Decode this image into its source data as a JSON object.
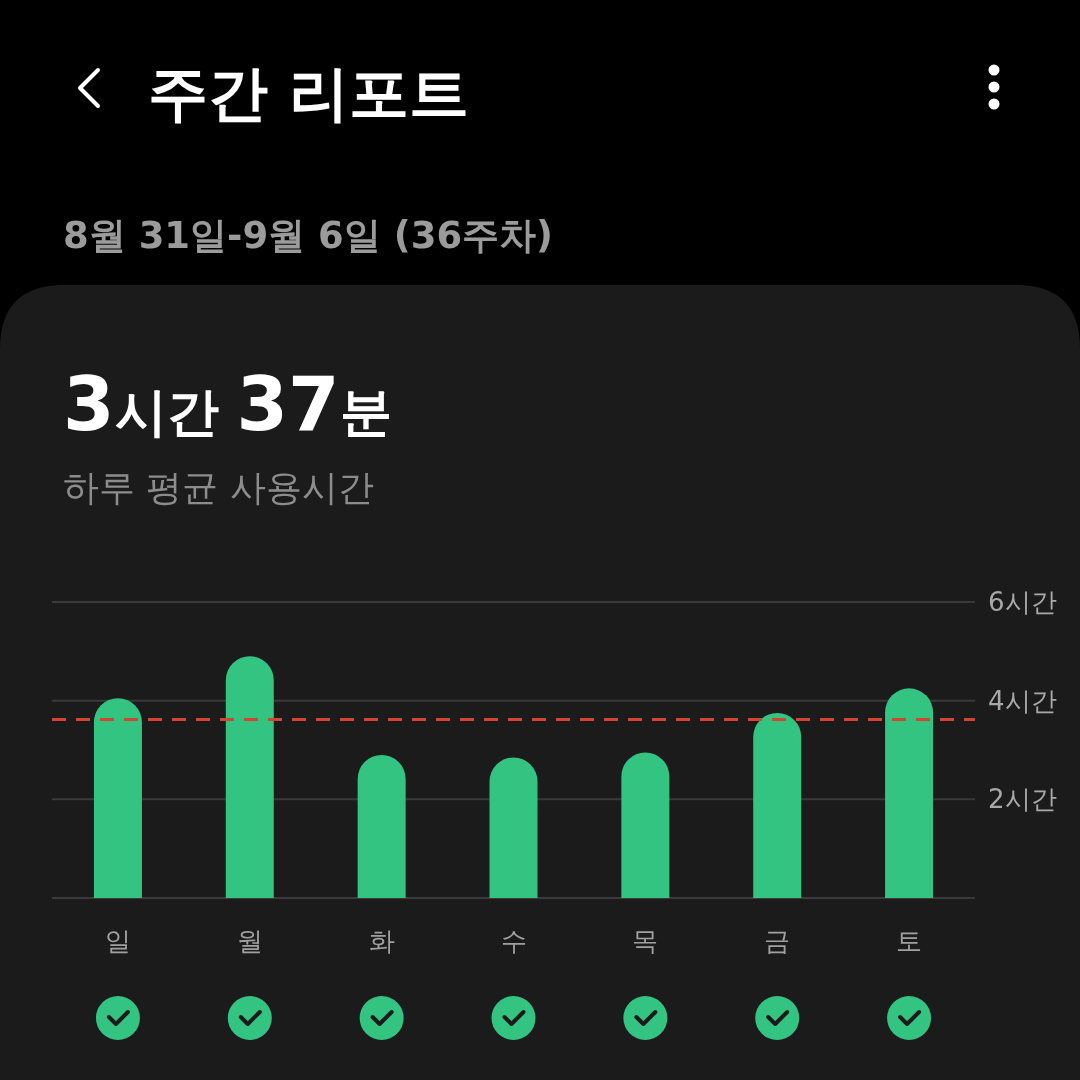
{
  "chart_data": {
    "type": "bar",
    "title": "주간 리포트",
    "subtitle": "8월 31일-9월 6일 (36주차)",
    "annotations": [
      "3시간 37분",
      "하루 평균 사용시간"
    ],
    "categories": [
      "일",
      "월",
      "화",
      "수",
      "목",
      "금",
      "토"
    ],
    "values": [
      4.05,
      4.9,
      2.9,
      2.85,
      2.95,
      3.75,
      4.25
    ],
    "color": "#33c481",
    "ylim": [
      0,
      6
    ],
    "yticks": [
      {
        "value": 0,
        "label": null
      },
      {
        "value": 2,
        "label": "2시간"
      },
      {
        "value": 4,
        "label": "4시간"
      },
      {
        "value": 6,
        "label": "6시간"
      }
    ],
    "grid": "y",
    "ref_lines": [
      {
        "axis": "y",
        "value": 3.62,
        "color": "#d4442e",
        "line_style": "dashed"
      }
    ]
  }
}
